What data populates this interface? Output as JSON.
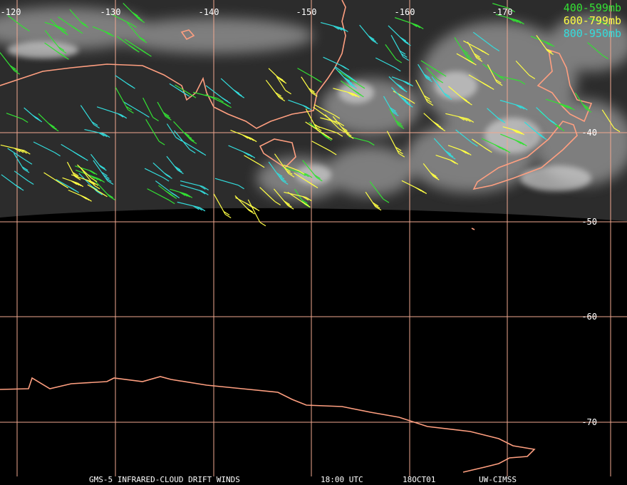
{
  "map": {
    "longitude_labels": [
      -120,
      -130,
      -140,
      -150,
      -160,
      -170
    ],
    "latitude_labels": [
      -40,
      -50,
      -60,
      -70
    ],
    "legend": [
      {
        "label": "400-599mb",
        "color": "#33e033"
      },
      {
        "label": "600-799mb",
        "color": "#ffff44"
      },
      {
        "label": "800-950mb",
        "color": "#33dddd"
      }
    ],
    "footer": [
      "GMS-5 INFRARED-CLOUD DRIFT WINDS",
      "18:00 UTC",
      "18OCT01",
      "UW-CIMSS"
    ]
  }
}
